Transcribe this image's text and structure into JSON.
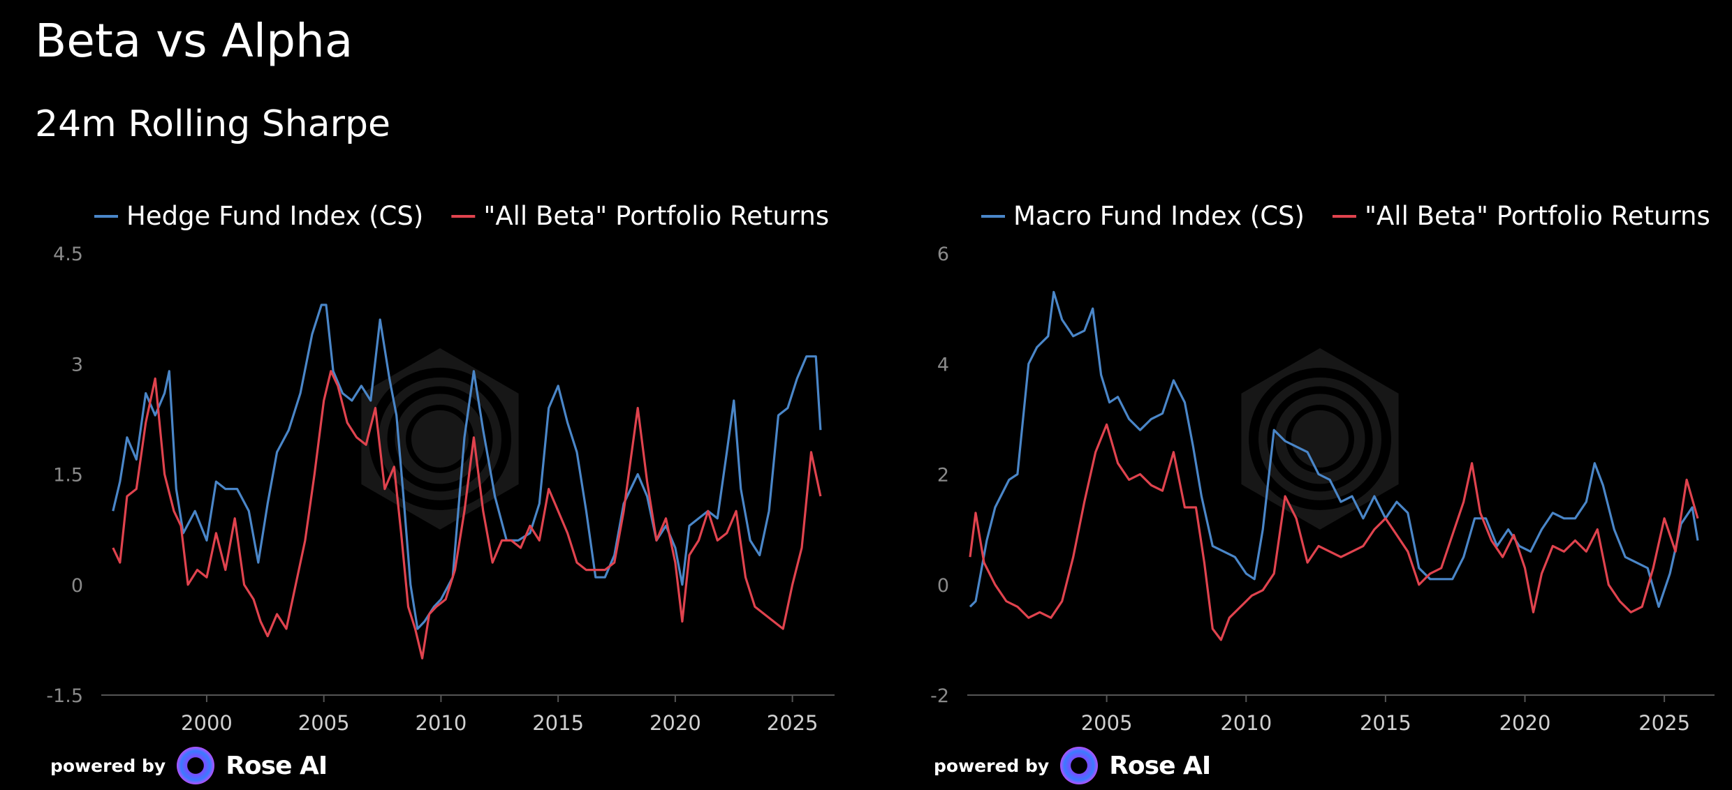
{
  "title": "Beta vs Alpha",
  "subtitle": "24m Rolling Sharpe",
  "footer": {
    "powered_by": "powered by",
    "brand": "Rose AI"
  },
  "colors": {
    "blue": "#4a86c8",
    "red": "#e0434e",
    "axis": "#555555",
    "background": "#000000"
  },
  "chart_data": [
    {
      "type": "line",
      "xlim": [
        1995.5,
        2026.8
      ],
      "ylim": [
        -1.5,
        4.5
      ],
      "yticks": [
        "4.5",
        "3",
        "1.5",
        "0",
        "-1.5"
      ],
      "xticks": [
        "2000",
        "2005",
        "2010",
        "2015",
        "2020",
        "2025"
      ],
      "series": [
        {
          "name": "Hedge Fund Index (CS)",
          "color": "#4a86c8",
          "x": [
            1996.0,
            1996.3,
            1996.6,
            1997.0,
            1997.4,
            1997.8,
            1998.2,
            1998.4,
            1998.7,
            1999.0,
            1999.5,
            2000.0,
            2000.4,
            2000.8,
            2001.3,
            2001.8,
            2002.2,
            2002.6,
            2003.0,
            2003.5,
            2004.0,
            2004.5,
            2004.9,
            2005.1,
            2005.4,
            2005.8,
            2006.2,
            2006.6,
            2007.0,
            2007.4,
            2007.8,
            2008.1,
            2008.4,
            2008.7,
            2009.0,
            2009.3,
            2009.7,
            2010.0,
            2010.5,
            2011.0,
            2011.4,
            2011.8,
            2012.3,
            2012.8,
            2013.3,
            2013.8,
            2014.2,
            2014.6,
            2015.0,
            2015.4,
            2015.8,
            2016.2,
            2016.6,
            2017.0,
            2017.4,
            2017.8,
            2018.1,
            2018.4,
            2018.8,
            2019.2,
            2019.6,
            2020.0,
            2020.3,
            2020.6,
            2021.0,
            2021.4,
            2021.8,
            2022.2,
            2022.5,
            2022.8,
            2023.2,
            2023.6,
            2024.0,
            2024.4,
            2024.8,
            2025.2,
            2025.6,
            2026.0,
            2026.2
          ],
          "y": [
            1.0,
            1.4,
            2.0,
            1.7,
            2.6,
            2.3,
            2.6,
            2.9,
            1.3,
            0.7,
            1.0,
            0.6,
            1.4,
            1.3,
            1.3,
            1.0,
            0.3,
            1.1,
            1.8,
            2.1,
            2.6,
            3.4,
            3.8,
            3.8,
            2.9,
            2.6,
            2.5,
            2.7,
            2.5,
            3.6,
            2.8,
            2.3,
            1.2,
            0.0,
            -0.6,
            -0.5,
            -0.3,
            -0.2,
            0.1,
            2.0,
            2.9,
            2.1,
            1.2,
            0.6,
            0.6,
            0.7,
            1.1,
            2.4,
            2.7,
            2.2,
            1.8,
            1.0,
            0.1,
            0.1,
            0.4,
            1.1,
            1.3,
            1.5,
            1.2,
            0.6,
            0.8,
            0.5,
            0.0,
            0.8,
            0.9,
            1.0,
            0.9,
            1.8,
            2.5,
            1.3,
            0.6,
            0.4,
            1.0,
            2.3,
            2.4,
            2.8,
            3.1,
            3.1,
            2.1
          ]
        },
        {
          "name": "\"All Beta\" Portfolio Returns",
          "color": "#e0434e",
          "x": [
            1996.0,
            1996.3,
            1996.6,
            1997.0,
            1997.4,
            1997.8,
            1998.2,
            1998.6,
            1998.9,
            1999.2,
            1999.6,
            2000.0,
            2000.4,
            2000.8,
            2001.2,
            2001.6,
            2002.0,
            2002.3,
            2002.6,
            2003.0,
            2003.4,
            2003.8,
            2004.2,
            2004.6,
            2005.0,
            2005.3,
            2005.6,
            2006.0,
            2006.4,
            2006.8,
            2007.2,
            2007.6,
            2008.0,
            2008.3,
            2008.6,
            2008.9,
            2009.2,
            2009.5,
            2009.8,
            2010.2,
            2010.6,
            2011.0,
            2011.4,
            2011.8,
            2012.2,
            2012.6,
            2013.0,
            2013.4,
            2013.8,
            2014.2,
            2014.6,
            2015.0,
            2015.4,
            2015.8,
            2016.2,
            2016.6,
            2017.0,
            2017.4,
            2017.8,
            2018.1,
            2018.4,
            2018.8,
            2019.2,
            2019.6,
            2020.0,
            2020.3,
            2020.6,
            2021.0,
            2021.4,
            2021.8,
            2022.2,
            2022.6,
            2023.0,
            2023.4,
            2023.8,
            2024.2,
            2024.6,
            2025.0,
            2025.4,
            2025.8,
            2026.2
          ],
          "y": [
            0.5,
            0.3,
            1.2,
            1.3,
            2.2,
            2.8,
            1.5,
            1.0,
            0.8,
            0.0,
            0.2,
            0.1,
            0.7,
            0.2,
            0.9,
            0.0,
            -0.2,
            -0.5,
            -0.7,
            -0.4,
            -0.6,
            0.0,
            0.6,
            1.5,
            2.5,
            2.9,
            2.7,
            2.2,
            2.0,
            1.9,
            2.4,
            1.3,
            1.6,
            0.7,
            -0.3,
            -0.6,
            -1.0,
            -0.4,
            -0.3,
            -0.2,
            0.2,
            1.0,
            2.0,
            1.0,
            0.3,
            0.6,
            0.6,
            0.5,
            0.8,
            0.6,
            1.3,
            1.0,
            0.7,
            0.3,
            0.2,
            0.2,
            0.2,
            0.3,
            1.0,
            1.7,
            2.4,
            1.4,
            0.6,
            0.9,
            0.3,
            -0.5,
            0.4,
            0.6,
            1.0,
            0.6,
            0.7,
            1.0,
            0.1,
            -0.3,
            -0.4,
            -0.5,
            -0.6,
            0.0,
            0.5,
            1.8,
            1.2
          ]
        }
      ]
    },
    {
      "type": "line",
      "xlim": [
        2000.0,
        2026.8
      ],
      "ylim": [
        -2,
        6
      ],
      "yticks": [
        "6",
        "4",
        "2",
        "0",
        "-2"
      ],
      "xticks": [
        "2005",
        "2010",
        "2015",
        "2020",
        "2025"
      ],
      "series": [
        {
          "name": "Macro Fund Index (CS)",
          "color": "#4a86c8",
          "x": [
            2000.1,
            2000.3,
            2000.7,
            2001.0,
            2001.5,
            2001.8,
            2002.2,
            2002.5,
            2002.9,
            2003.1,
            2003.4,
            2003.8,
            2004.2,
            2004.5,
            2004.8,
            2005.1,
            2005.4,
            2005.8,
            2006.2,
            2006.6,
            2007.0,
            2007.4,
            2007.8,
            2008.1,
            2008.4,
            2008.8,
            2009.2,
            2009.6,
            2010.0,
            2010.3,
            2010.6,
            2011.0,
            2011.4,
            2011.8,
            2012.2,
            2012.6,
            2013.0,
            2013.4,
            2013.8,
            2014.2,
            2014.6,
            2015.0,
            2015.4,
            2015.8,
            2016.2,
            2016.6,
            2017.0,
            2017.4,
            2017.8,
            2018.2,
            2018.6,
            2019.0,
            2019.4,
            2019.8,
            2020.2,
            2020.6,
            2021.0,
            2021.4,
            2021.8,
            2022.2,
            2022.5,
            2022.8,
            2023.2,
            2023.6,
            2024.0,
            2024.4,
            2024.8,
            2025.2,
            2025.6,
            2026.0,
            2026.2
          ],
          "y": [
            -0.4,
            -0.3,
            0.8,
            1.4,
            1.9,
            2.0,
            4.0,
            4.3,
            4.5,
            5.3,
            4.8,
            4.5,
            4.6,
            5.0,
            3.8,
            3.3,
            3.4,
            3.0,
            2.8,
            3.0,
            3.1,
            3.7,
            3.3,
            2.5,
            1.6,
            0.7,
            0.6,
            0.5,
            0.2,
            0.1,
            1.0,
            2.8,
            2.6,
            2.5,
            2.4,
            2.0,
            1.9,
            1.5,
            1.6,
            1.2,
            1.6,
            1.2,
            1.5,
            1.3,
            0.3,
            0.1,
            0.1,
            0.1,
            0.5,
            1.2,
            1.2,
            0.7,
            1.0,
            0.7,
            0.6,
            1.0,
            1.3,
            1.2,
            1.2,
            1.5,
            2.2,
            1.8,
            1.0,
            0.5,
            0.4,
            0.3,
            -0.4,
            0.2,
            1.1,
            1.4,
            0.8
          ]
        },
        {
          "name": "\"All Beta\" Portfolio Returns",
          "color": "#e0434e",
          "x": [
            2000.1,
            2000.3,
            2000.6,
            2001.0,
            2001.4,
            2001.8,
            2002.2,
            2002.6,
            2003.0,
            2003.4,
            2003.8,
            2004.2,
            2004.6,
            2005.0,
            2005.4,
            2005.8,
            2006.2,
            2006.6,
            2007.0,
            2007.4,
            2007.8,
            2008.2,
            2008.5,
            2008.8,
            2009.1,
            2009.4,
            2009.8,
            2010.2,
            2010.6,
            2011.0,
            2011.4,
            2011.8,
            2012.2,
            2012.6,
            2013.0,
            2013.4,
            2013.8,
            2014.2,
            2014.6,
            2015.0,
            2015.4,
            2015.8,
            2016.2,
            2016.6,
            2017.0,
            2017.4,
            2017.8,
            2018.1,
            2018.4,
            2018.8,
            2019.2,
            2019.6,
            2020.0,
            2020.3,
            2020.6,
            2021.0,
            2021.4,
            2021.8,
            2022.2,
            2022.6,
            2023.0,
            2023.4,
            2023.8,
            2024.2,
            2024.6,
            2025.0,
            2025.4,
            2025.8,
            2026.2
          ],
          "y": [
            0.5,
            1.3,
            0.4,
            0.0,
            -0.3,
            -0.4,
            -0.6,
            -0.5,
            -0.6,
            -0.3,
            0.5,
            1.5,
            2.4,
            2.9,
            2.2,
            1.9,
            2.0,
            1.8,
            1.7,
            2.4,
            1.4,
            1.4,
            0.4,
            -0.8,
            -1.0,
            -0.6,
            -0.4,
            -0.2,
            -0.1,
            0.2,
            1.6,
            1.2,
            0.4,
            0.7,
            0.6,
            0.5,
            0.6,
            0.7,
            1.0,
            1.2,
            0.9,
            0.6,
            0.0,
            0.2,
            0.3,
            0.9,
            1.5,
            2.2,
            1.3,
            0.8,
            0.5,
            0.9,
            0.3,
            -0.5,
            0.2,
            0.7,
            0.6,
            0.8,
            0.6,
            1.0,
            0.0,
            -0.3,
            -0.5,
            -0.4,
            0.3,
            1.2,
            0.6,
            1.9,
            1.2
          ]
        }
      ]
    }
  ]
}
